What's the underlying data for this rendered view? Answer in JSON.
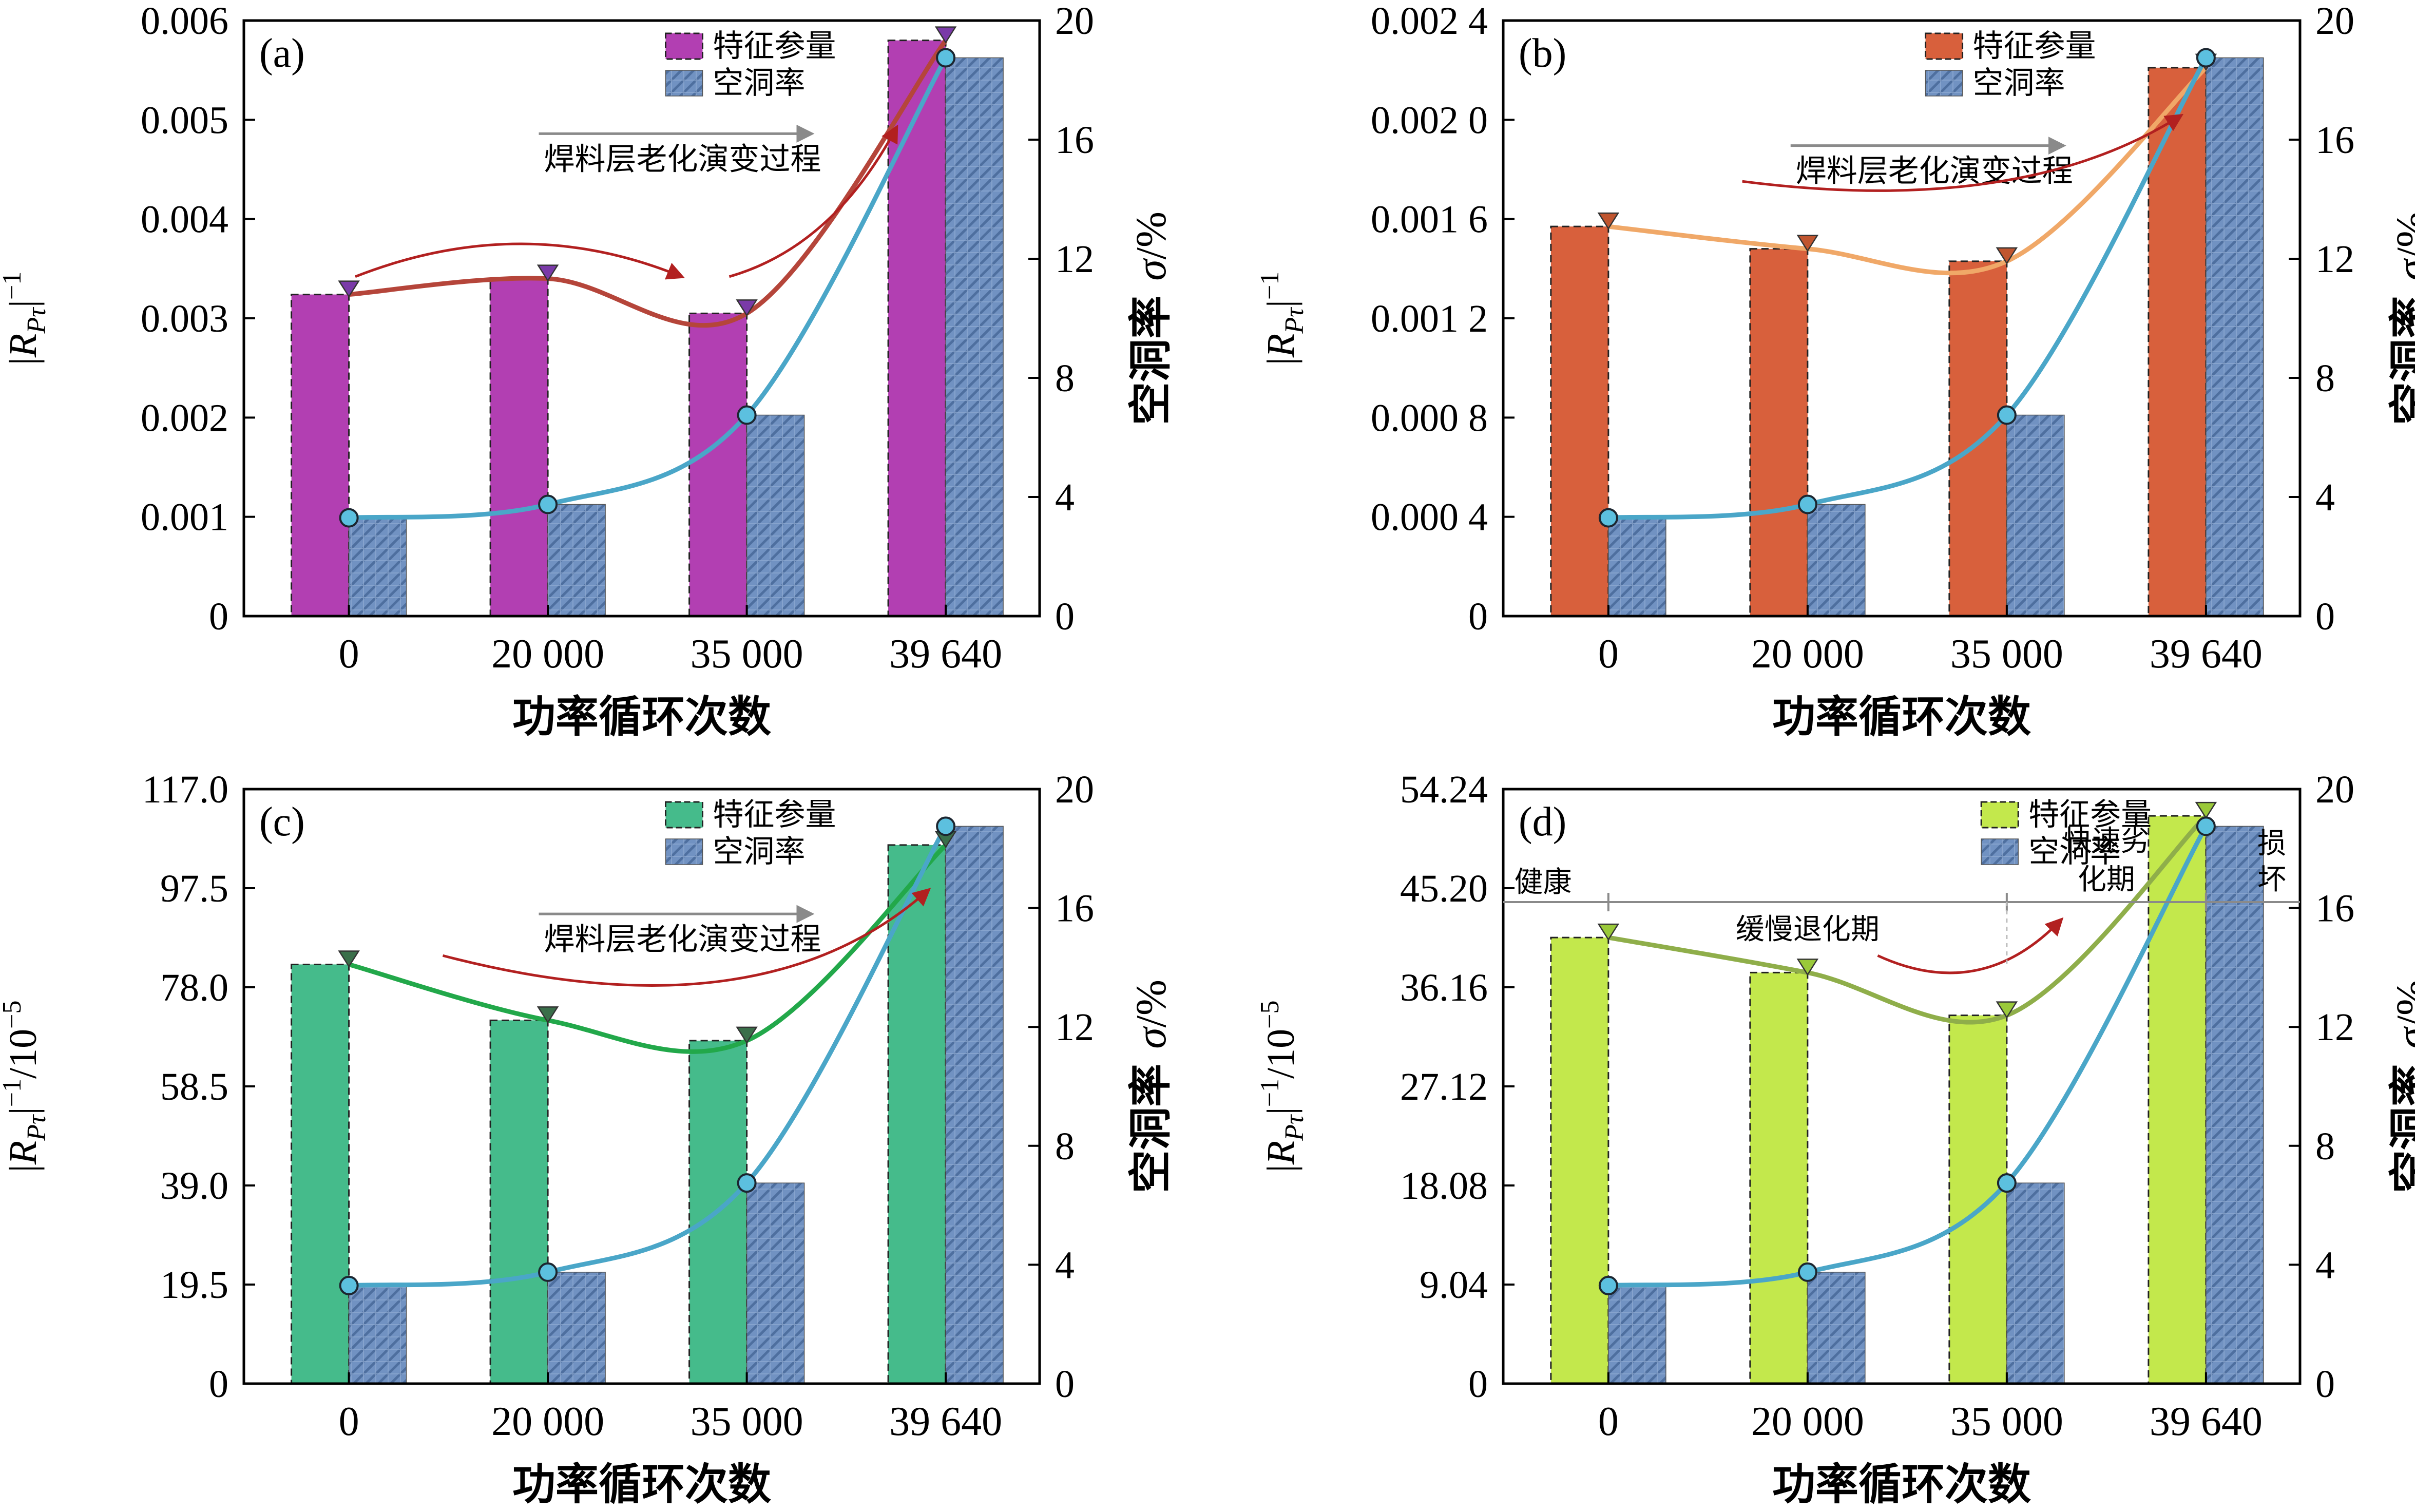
{
  "figure": {
    "x_categories": [
      "0",
      "20 000",
      "35 000",
      "39 640"
    ],
    "x_axis_title": "功率循环次数",
    "right_axis_label": "空洞率 σ/%",
    "right_axis_label_main": "空洞率",
    "right_axis_label_sym": "σ/%",
    "legend_feature": "特征参量",
    "legend_void": "空洞率",
    "process_label": "焊料层老化演变过程"
  },
  "chart_data": [
    {
      "panel": "(a)",
      "type": "bar",
      "categories": [
        "0",
        "20 000",
        "35 000",
        "39 640"
      ],
      "ylim": [
        0,
        0.006
      ],
      "yticks": [
        "0",
        "0.001",
        "0.002",
        "0.003",
        "0.004",
        "0.005",
        "0.006"
      ],
      "ylabel": "|R_Pτ|^-1",
      "y2lim": [
        0,
        20
      ],
      "y2ticks": [
        "0",
        "4",
        "8",
        "12",
        "16",
        "20"
      ],
      "y2label": "空洞率 σ/%",
      "series": [
        {
          "name": "特征参量",
          "values": [
            0.00324,
            0.0034,
            0.00305,
            0.0058
          ],
          "color": "#b23fb2",
          "marker": "#7a3aa8",
          "line_color": "#b5453a"
        },
        {
          "name": "空洞率",
          "values": [
            3.3,
            3.75,
            6.75,
            18.75
          ],
          "color": "#6f8fbe",
          "line_color": "#4aa6c8"
        }
      ],
      "annotations": [
        "焊料层老化演变过程"
      ]
    },
    {
      "panel": "(b)",
      "type": "bar",
      "categories": [
        "0",
        "20 000",
        "35 000",
        "39 640"
      ],
      "ylim": [
        0,
        0.0024
      ],
      "yticks": [
        "0",
        "0.000 4",
        "0.000 8",
        "0.001 2",
        "0.001 6",
        "0.002 0",
        "0.002 4"
      ],
      "ylabel": "|R_Pτ|^-1",
      "y2lim": [
        0,
        20
      ],
      "y2ticks": [
        "0",
        "4",
        "8",
        "12",
        "16",
        "20"
      ],
      "y2label": "空洞率 σ/%",
      "series": [
        {
          "name": "特征参量",
          "values": [
            0.00157,
            0.00148,
            0.00143,
            0.00221
          ],
          "color": "#d8603c",
          "marker": "#c0552f",
          "line_color": "#f0a868"
        },
        {
          "name": "空洞率",
          "values": [
            3.3,
            3.75,
            6.75,
            18.75
          ],
          "color": "#6f8fbe",
          "line_color": "#4aa6c8"
        }
      ],
      "annotations": [
        "焊料层老化演变过程"
      ]
    },
    {
      "panel": "(c)",
      "type": "bar",
      "categories": [
        "0",
        "20 000",
        "35 000",
        "39 640"
      ],
      "ylim": [
        0,
        117.0
      ],
      "yticks": [
        "0",
        "19.5",
        "39.0",
        "58.5",
        "78.0",
        "97.5",
        "117.0"
      ],
      "ylabel": "|R_Pτ|^-1/10^-5",
      "y2lim": [
        0,
        20
      ],
      "y2ticks": [
        "0",
        "4",
        "8",
        "12",
        "16",
        "20"
      ],
      "y2label": "空洞率 σ/%",
      "series": [
        {
          "name": "特征参量",
          "values": [
            82.5,
            71.5,
            67.5,
            106
          ],
          "color": "#45bb8b",
          "marker": "#3a6f4a",
          "line_color": "#22a84a"
        },
        {
          "name": "空洞率",
          "values": [
            3.3,
            3.75,
            6.75,
            18.75
          ],
          "color": "#6f8fbe",
          "line_color": "#4aa6c8"
        }
      ],
      "annotations": [
        "焊料层老化演变过程"
      ]
    },
    {
      "panel": "(d)",
      "type": "bar",
      "categories": [
        "0",
        "20 000",
        "35 000",
        "39 640"
      ],
      "ylim": [
        0,
        54.24
      ],
      "yticks": [
        "0",
        "9.04",
        "18.08",
        "27.12",
        "36.16",
        "45.20",
        "54.24"
      ],
      "ylabel": "|R_Pτ|^-1/10^-5",
      "y2lim": [
        0,
        20
      ],
      "y2ticks": [
        "0",
        "4",
        "8",
        "12",
        "16",
        "20"
      ],
      "y2label": "空洞率 σ/%",
      "series": [
        {
          "name": "特征参量",
          "values": [
            40.7,
            37.5,
            33.6,
            51.8
          ],
          "color": "#c3e84c",
          "marker": "#9ac93a",
          "line_color": "#8fae4a"
        },
        {
          "name": "空洞率",
          "values": [
            3.3,
            3.75,
            6.75,
            18.75
          ],
          "color": "#6f8fbe",
          "line_color": "#4aa6c8"
        }
      ],
      "stages": [
        "健康",
        "缓慢退化期",
        "快速劣",
        "化期",
        "损",
        "坏"
      ]
    }
  ]
}
